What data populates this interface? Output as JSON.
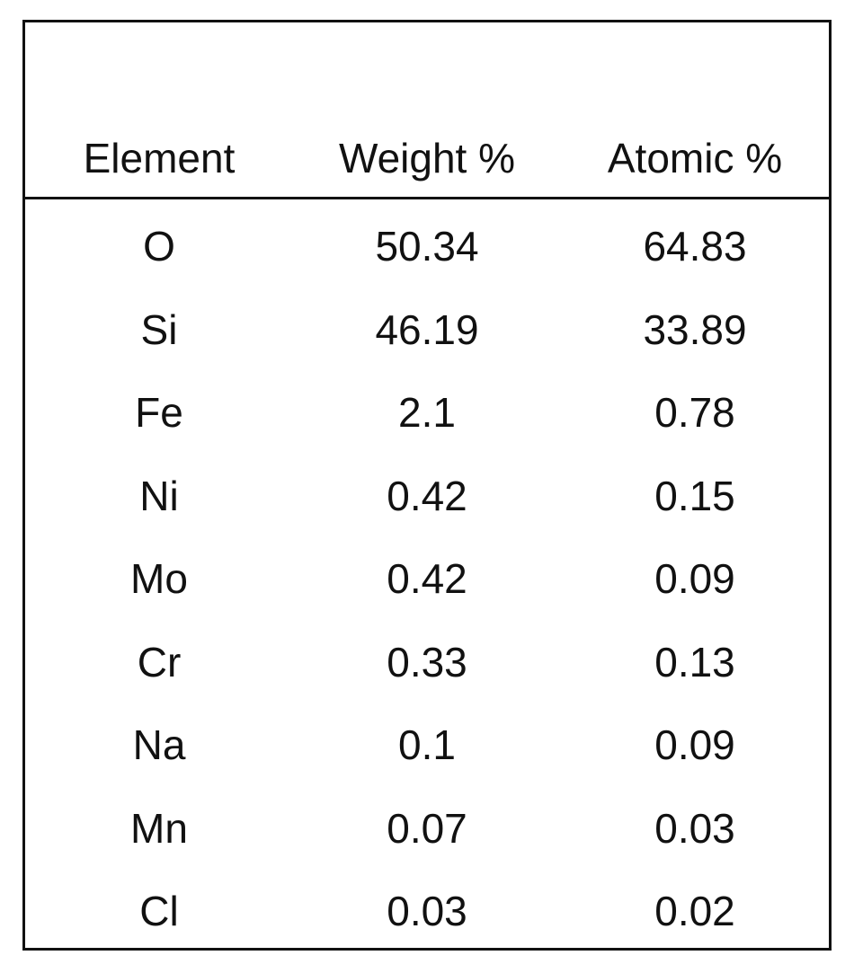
{
  "table": {
    "headers": [
      "Element",
      "Weight %",
      "Atomic %"
    ],
    "rows": [
      [
        "O",
        "50.34",
        "64.83"
      ],
      [
        "Si",
        "46.19",
        "33.89"
      ],
      [
        "Fe",
        "2.1",
        "0.78"
      ],
      [
        "Ni",
        "0.42",
        "0.15"
      ],
      [
        "Mo",
        "0.42",
        "0.09"
      ],
      [
        "Cr",
        "0.33",
        "0.13"
      ],
      [
        "Na",
        "0.1",
        "0.09"
      ],
      [
        "Mn",
        "0.07",
        "0.03"
      ],
      [
        "Cl",
        "0.03",
        "0.02"
      ]
    ]
  }
}
